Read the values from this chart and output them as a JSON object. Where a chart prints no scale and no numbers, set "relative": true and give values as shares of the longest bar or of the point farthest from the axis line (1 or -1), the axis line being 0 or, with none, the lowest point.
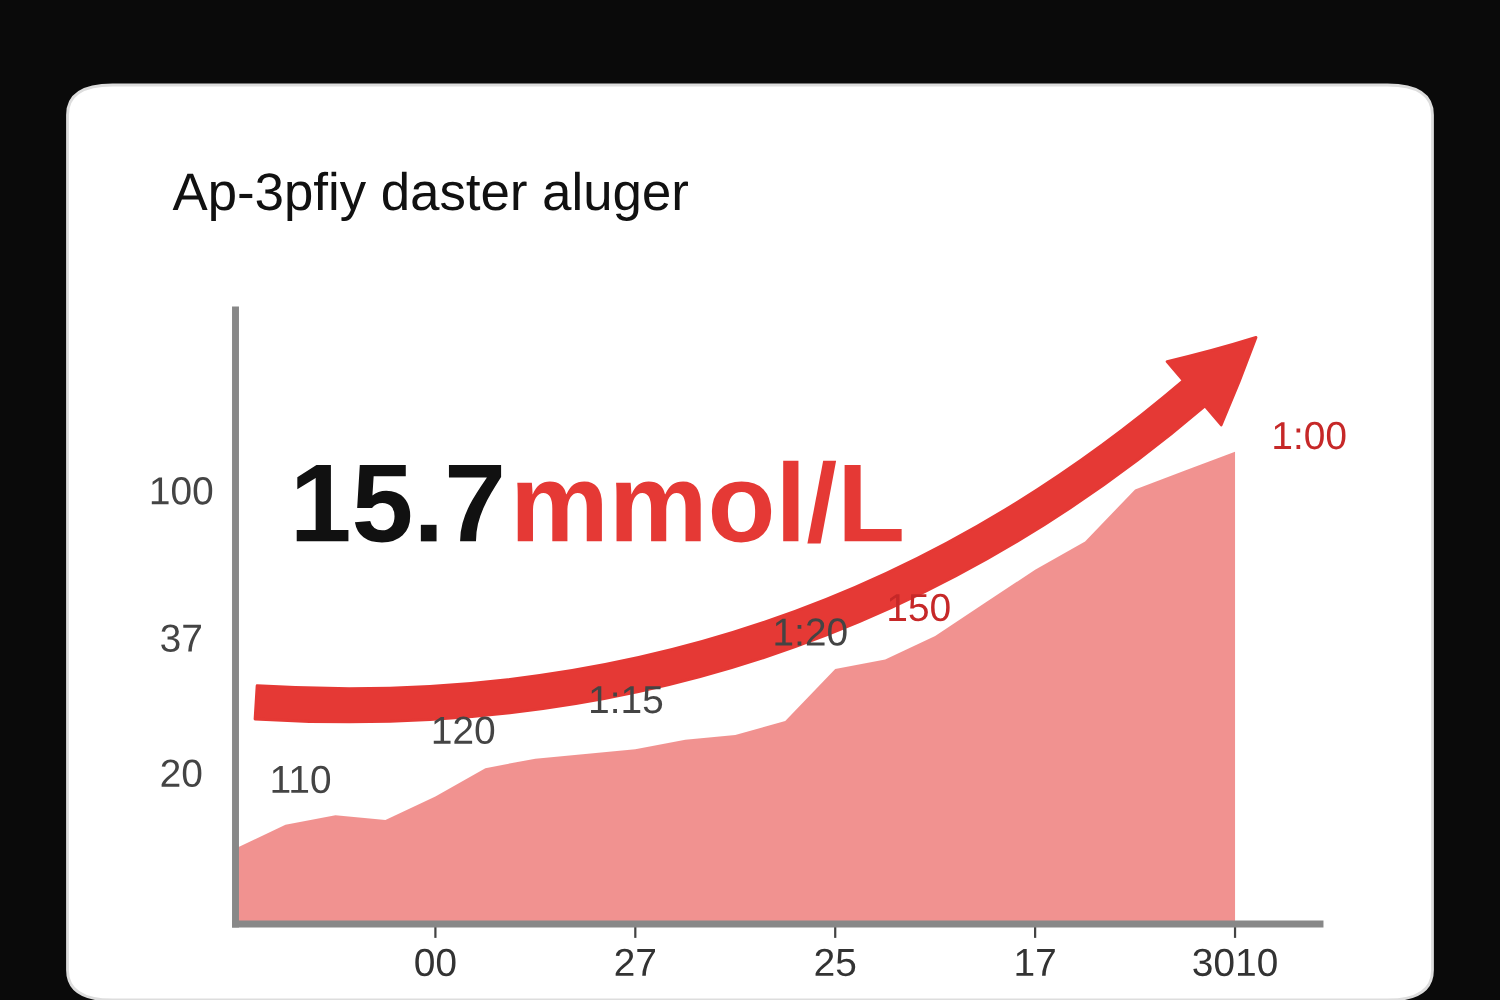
{
  "chart_data": {
    "type": "area",
    "title": "Ap-3pfiy daster aluger",
    "relative": true,
    "categories": [
      null,
      null,
      null,
      null,
      "00",
      null,
      null,
      null,
      "27",
      null,
      null,
      null,
      "25",
      null,
      null,
      null,
      "17",
      null,
      null,
      null,
      "3010"
    ],
    "series": [
      {
        "color": "#e53935",
        "values": [
          0.16,
          0.21,
          0.23,
          0.22,
          0.27,
          0.33,
          0.35,
          0.36,
          0.37,
          0.39,
          0.4,
          0.43,
          0.54,
          0.56,
          0.61,
          0.68,
          0.75,
          0.81,
          0.92,
          0.96,
          1.0
        ]
      }
    ],
    "annotations": [
      "15.7",
      "mmol/L",
      "110",
      "120",
      "1:15",
      "1:20",
      "150",
      "1:00",
      "100",
      "37",
      "20"
    ]
  }
}
